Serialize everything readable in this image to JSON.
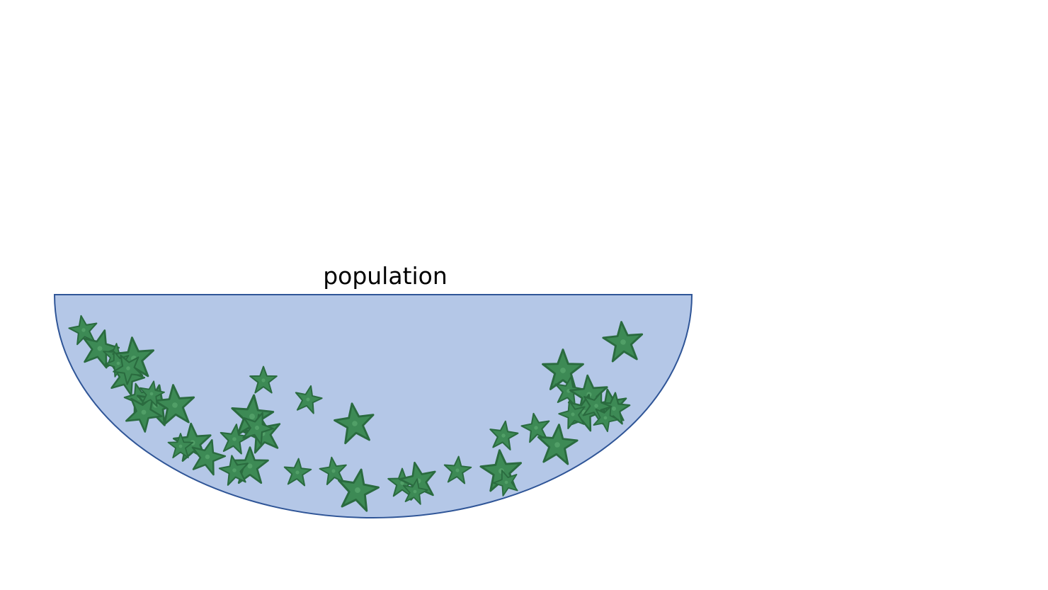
{
  "diagram": {
    "label": "population",
    "container_fill": "#b4c7e7",
    "container_stroke": "#2f5597",
    "starfish_icon": "starfish-icon",
    "starfish_colors": {
      "body": "#3d8a55",
      "shadow": "#2a6b3f",
      "highlight": "#5aa86f"
    },
    "starfish_count": 46
  }
}
